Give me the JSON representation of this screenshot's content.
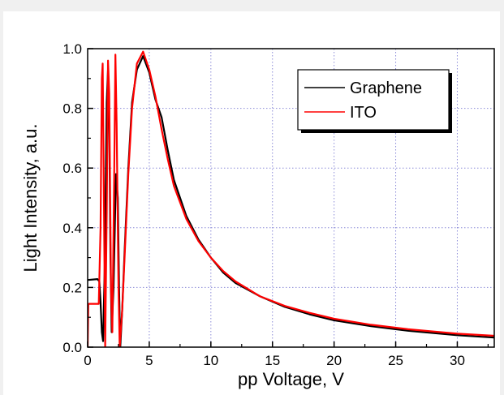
{
  "chart_data": {
    "type": "line",
    "title": "",
    "xlabel": "pp Voltage, V",
    "ylabel": "Light Intensity, a.u.",
    "xlim": [
      0,
      33
    ],
    "ylim": [
      0.0,
      1.0
    ],
    "x_ticks": [
      0,
      5,
      10,
      15,
      20,
      25,
      30
    ],
    "x_tick_labels": [
      "0",
      "5",
      "10",
      "15",
      "20",
      "25",
      "30"
    ],
    "y_ticks": [
      0.0,
      0.2,
      0.4,
      0.6,
      0.8,
      1.0
    ],
    "y_tick_labels": [
      "0.0",
      "0.2",
      "0.4",
      "0.6",
      "0.8",
      "1.0"
    ],
    "grid": true,
    "legend_position": "top-right",
    "series": [
      {
        "name": "Graphene",
        "color": "#000000",
        "points": [
          [
            0.0,
            0.225
          ],
          [
            0.8,
            0.228
          ],
          [
            0.95,
            0.22
          ],
          [
            1.05,
            0.15
          ],
          [
            1.15,
            0.05
          ],
          [
            1.25,
            0.02
          ],
          [
            1.4,
            0.3
          ],
          [
            1.55,
            0.82
          ],
          [
            1.65,
            0.93
          ],
          [
            1.75,
            0.75
          ],
          [
            1.85,
            0.3
          ],
          [
            1.95,
            0.05
          ],
          [
            2.1,
            0.2
          ],
          [
            2.3,
            0.58
          ],
          [
            2.45,
            0.5
          ],
          [
            2.55,
            0.2
          ],
          [
            2.65,
            0.0
          ],
          [
            2.8,
            0.12
          ],
          [
            3.0,
            0.32
          ],
          [
            3.3,
            0.6
          ],
          [
            3.6,
            0.82
          ],
          [
            4.0,
            0.93
          ],
          [
            4.5,
            0.975
          ],
          [
            5.0,
            0.92
          ],
          [
            5.5,
            0.83
          ],
          [
            6.0,
            0.77
          ],
          [
            6.5,
            0.66
          ],
          [
            7.0,
            0.56
          ],
          [
            8.0,
            0.44
          ],
          [
            9.0,
            0.36
          ],
          [
            10.0,
            0.3
          ],
          [
            11.0,
            0.25
          ],
          [
            12.0,
            0.215
          ],
          [
            14.0,
            0.17
          ],
          [
            16.0,
            0.135
          ],
          [
            18.0,
            0.11
          ],
          [
            20.0,
            0.09
          ],
          [
            23.0,
            0.07
          ],
          [
            26.0,
            0.055
          ],
          [
            30.0,
            0.04
          ],
          [
            33.0,
            0.032
          ]
        ]
      },
      {
        "name": "ITO",
        "color": "#ff0000",
        "points": [
          [
            0.0,
            0.0
          ],
          [
            0.05,
            0.145
          ],
          [
            0.9,
            0.145
          ],
          [
            1.05,
            0.4
          ],
          [
            1.15,
            0.9
          ],
          [
            1.22,
            0.95
          ],
          [
            1.3,
            0.6
          ],
          [
            1.42,
            0.0
          ],
          [
            1.55,
            0.45
          ],
          [
            1.65,
            0.96
          ],
          [
            1.75,
            0.85
          ],
          [
            1.9,
            0.2
          ],
          [
            2.0,
            0.05
          ],
          [
            2.15,
            0.55
          ],
          [
            2.25,
            0.98
          ],
          [
            2.35,
            0.75
          ],
          [
            2.5,
            0.2
          ],
          [
            2.6,
            0.0
          ],
          [
            2.8,
            0.12
          ],
          [
            3.0,
            0.3
          ],
          [
            3.3,
            0.58
          ],
          [
            3.6,
            0.8
          ],
          [
            4.0,
            0.95
          ],
          [
            4.5,
            0.99
          ],
          [
            5.0,
            0.93
          ],
          [
            5.5,
            0.84
          ],
          [
            6.0,
            0.73
          ],
          [
            6.5,
            0.63
          ],
          [
            7.0,
            0.54
          ],
          [
            8.0,
            0.43
          ],
          [
            9.0,
            0.355
          ],
          [
            10.0,
            0.3
          ],
          [
            11.0,
            0.255
          ],
          [
            12.0,
            0.22
          ],
          [
            14.0,
            0.17
          ],
          [
            16.0,
            0.138
          ],
          [
            18.0,
            0.115
          ],
          [
            20.0,
            0.095
          ],
          [
            23.0,
            0.075
          ],
          [
            26.0,
            0.06
          ],
          [
            30.0,
            0.045
          ],
          [
            33.0,
            0.038
          ]
        ]
      }
    ]
  }
}
